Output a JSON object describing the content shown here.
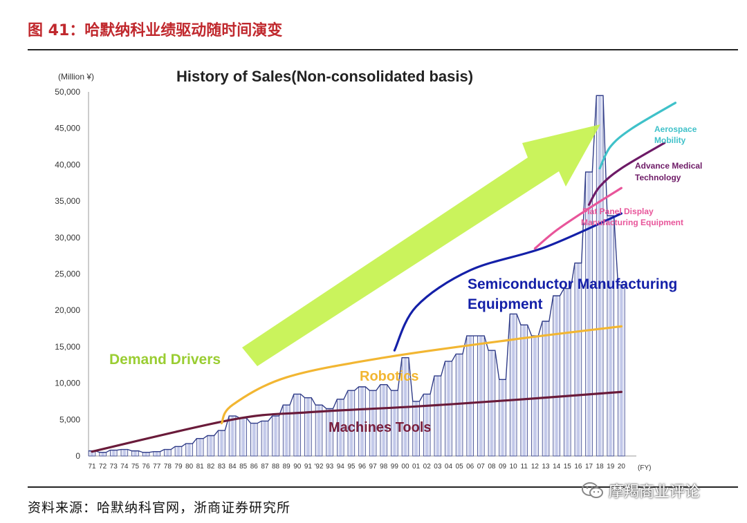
{
  "figure": {
    "title": "图 41：哈默纳科业绩驱动随时间演变",
    "source": "资料来源：哈默纳科官网，浙商证券研究所",
    "watermark": "摩羯商业评论",
    "watermark_icon": "wechat-icon"
  },
  "chart_data": {
    "type": "bar",
    "title": "History of Sales(Non-consolidated basis)",
    "unit_label": "(Million ¥)",
    "x_unit_label": "(FY)",
    "ylim": [
      0,
      50000
    ],
    "y_ticks": [
      "0",
      "5,000",
      "10,000",
      "15,000",
      "20,000",
      "25,000",
      "30,000",
      "35,000",
      "40,000",
      "45,000",
      "50,000"
    ],
    "y_tick_values": [
      0,
      5000,
      10000,
      15000,
      20000,
      25000,
      30000,
      35000,
      40000,
      45000,
      50000
    ],
    "categories": [
      "71",
      "72",
      "73",
      "74",
      "75",
      "76",
      "77",
      "78",
      "79",
      "80",
      "81",
      "82",
      "83",
      "84",
      "85",
      "86",
      "87",
      "88",
      "89",
      "90",
      "91",
      "'92",
      "93",
      "94",
      "95",
      "96",
      "97",
      "98",
      "99",
      "00",
      "01",
      "02",
      "03",
      "04",
      "05",
      "06",
      "07",
      "08",
      "09",
      "10",
      "11",
      "12",
      "13",
      "14",
      "15",
      "16",
      "17",
      "18",
      "19",
      "20"
    ],
    "values": [
      700,
      500,
      800,
      900,
      700,
      500,
      600,
      900,
      1300,
      1700,
      2400,
      2800,
      3500,
      5500,
      5200,
      4500,
      4800,
      5500,
      7000,
      8500,
      8000,
      7000,
      6500,
      7800,
      9000,
      9500,
      9000,
      9800,
      9000,
      13500,
      7500,
      8500,
      11000,
      13000,
      14000,
      16500,
      16500,
      14500,
      10500,
      19500,
      18000,
      16500,
      18500,
      22000,
      23000,
      26500,
      39000,
      49500,
      33000,
      23500
    ],
    "bar_color": "#2e3a87",
    "series": [
      {
        "name": "Machines Tools",
        "color": "#6a1b3a",
        "x": [
          0,
          13,
          20,
          30,
          40,
          49
        ],
        "y": [
          600,
          5000,
          6000,
          6800,
          7800,
          8800
        ]
      },
      {
        "name": "Robotics",
        "color": "#f2b632",
        "x": [
          12,
          13,
          18,
          27,
          39,
          49
        ],
        "y": [
          4500,
          7000,
          10800,
          13500,
          16000,
          17800
        ]
      },
      {
        "name": "Semiconductor Manufacturing Equipment",
        "color": "#1420a8",
        "x": [
          28,
          30,
          35,
          42,
          49
        ],
        "y": [
          14500,
          20500,
          25500,
          28700,
          33300
        ]
      },
      {
        "name": "Flat Panel Display Manufacturing Equipment",
        "color": "#e8559a",
        "x": [
          41,
          43,
          46,
          49
        ],
        "y": [
          28500,
          31000,
          34000,
          36800
        ]
      },
      {
        "name": "Advance Medical Technology",
        "color": "#6d1a66",
        "x": [
          46,
          47,
          49,
          53
        ],
        "y": [
          34500,
          37000,
          39500,
          43000
        ]
      },
      {
        "name": "Aerospace Mobility",
        "color": "#3fc1c9",
        "x": [
          47,
          48,
          50,
          54
        ],
        "y": [
          39500,
          42500,
          45000,
          48500
        ]
      }
    ],
    "annotations": {
      "demand_drivers": "Demand Drivers",
      "robotics": "Robotics",
      "semiconductor_line1": "Semiconductor Manufacturing",
      "semiconductor_line2": "Equipment",
      "machines_tools": "Machines Tools",
      "fpd_line1": "Flat Panel Display",
      "fpd_line2": "Manufacturing Equipment",
      "medical_line1": "Advance Medical",
      "medical_line2": "Technology",
      "aero_line1": "Aerospace",
      "aero_line2": "Mobility"
    },
    "arrow_color": "#c6f24e"
  }
}
